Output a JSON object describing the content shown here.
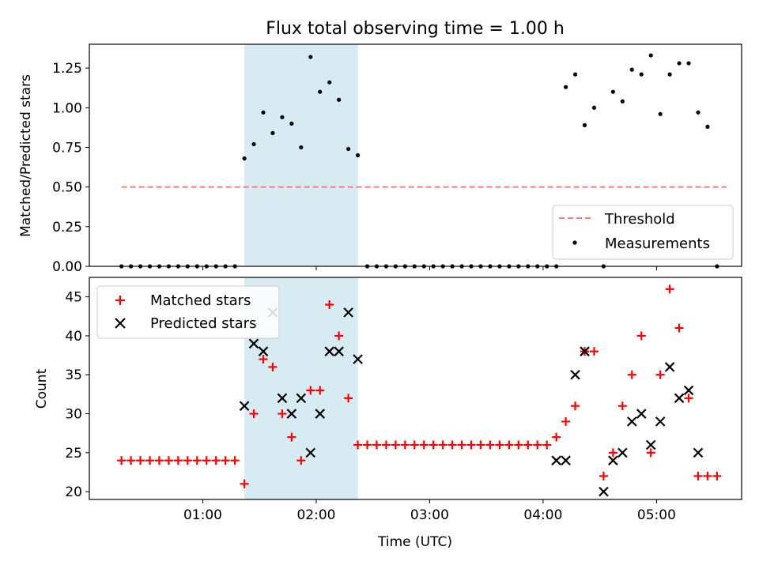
{
  "chart_data": [
    {
      "type": "scatter",
      "title": "Flux total observing time = 1.00 h",
      "ylabel": "Matched/Predicted stars",
      "xlabel": "",
      "ylim": [
        0,
        1.4
      ],
      "ytick_labels": [
        "0.00",
        "0.25",
        "0.50",
        "0.75",
        "1.00",
        "1.25"
      ],
      "yticks": [
        0,
        0.25,
        0.5,
        0.75,
        1.0,
        1.25
      ],
      "threshold": {
        "name": "Threshold",
        "value": 0.5,
        "x_start": "00:17",
        "x_end": "05:37",
        "color": "#ff7b7b"
      },
      "shaded_region": {
        "x_start": "01:22",
        "x_end": "02:22",
        "color": "#add8e6"
      },
      "legend": {
        "placement": "lower right",
        "entries": [
          "Threshold",
          "Measurements"
        ]
      },
      "series": [
        {
          "name": "Measurements",
          "color": "#000000",
          "x": [
            "00:17",
            "00:22",
            "00:27",
            "00:32",
            "00:37",
            "00:42",
            "00:47",
            "00:52",
            "00:57",
            "01:02",
            "01:07",
            "01:12",
            "01:17",
            "01:22",
            "01:27",
            "01:32",
            "01:37",
            "01:42",
            "01:47",
            "01:52",
            "01:57",
            "02:02",
            "02:07",
            "02:12",
            "02:17",
            "02:22",
            "02:27",
            "02:32",
            "02:37",
            "02:42",
            "02:47",
            "02:52",
            "02:57",
            "03:02",
            "03:07",
            "03:12",
            "03:17",
            "03:22",
            "03:27",
            "03:32",
            "03:37",
            "03:42",
            "03:47",
            "03:52",
            "03:57",
            "04:02",
            "04:07",
            "04:12",
            "04:17",
            "04:22",
            "04:27",
            "04:32",
            "04:37",
            "04:42",
            "04:47",
            "04:52",
            "04:57",
            "05:02",
            "05:07",
            "05:12",
            "05:17",
            "05:22",
            "05:27",
            "05:32"
          ],
          "y": [
            0,
            0,
            0,
            0,
            0,
            0,
            0,
            0,
            0,
            0,
            0,
            0,
            0,
            0.68,
            0.77,
            0.97,
            0.84,
            0.94,
            0.9,
            0.75,
            1.32,
            1.1,
            1.16,
            1.05,
            0.74,
            0.7,
            0,
            0,
            0,
            0,
            0,
            0,
            0,
            0,
            0,
            0,
            0,
            0,
            0,
            0,
            0,
            0,
            0,
            0,
            0,
            0,
            0,
            1.13,
            1.21,
            0.89,
            1.0,
            0,
            1.1,
            1.04,
            1.24,
            1.21,
            1.33,
            0.96,
            1.21,
            1.28,
            1.28,
            0.97,
            0.88,
            0
          ]
        }
      ]
    },
    {
      "type": "scatter",
      "title": "",
      "xlabel": "Time (UTC)",
      "ylabel": "Count",
      "ylim": [
        19,
        47.5
      ],
      "yticks": [
        20,
        25,
        30,
        35,
        40,
        45
      ],
      "ytick_labels": [
        "20",
        "25",
        "30",
        "35",
        "40",
        "45"
      ],
      "xticks": [
        "01:00",
        "02:00",
        "03:00",
        "04:00",
        "05:00"
      ],
      "xtick_labels": [
        "01:00",
        "02:00",
        "03:00",
        "04:00",
        "05:00"
      ],
      "xlim": [
        "00:00",
        "05:45"
      ],
      "shaded_region": {
        "x_start": "01:22",
        "x_end": "02:22",
        "color": "#add8e6"
      },
      "legend": {
        "placement": "upper left",
        "entries": [
          "Matched stars",
          "Predicted stars"
        ]
      },
      "series": [
        {
          "name": "Matched stars",
          "marker": "+",
          "color": "#ff0000",
          "points": [
            [
              "00:17",
              24
            ],
            [
              "00:22",
              24
            ],
            [
              "00:27",
              24
            ],
            [
              "00:32",
              24
            ],
            [
              "00:37",
              24
            ],
            [
              "00:42",
              24
            ],
            [
              "00:47",
              24
            ],
            [
              "00:52",
              24
            ],
            [
              "00:57",
              24
            ],
            [
              "01:02",
              24
            ],
            [
              "01:07",
              24
            ],
            [
              "01:12",
              24
            ],
            [
              "01:17",
              24
            ],
            [
              "01:22",
              21
            ],
            [
              "01:27",
              30
            ],
            [
              "01:32",
              37
            ],
            [
              "01:37",
              36
            ],
            [
              "01:42",
              30
            ],
            [
              "01:47",
              27
            ],
            [
              "01:52",
              24
            ],
            [
              "01:57",
              33
            ],
            [
              "02:02",
              33
            ],
            [
              "02:07",
              44
            ],
            [
              "02:12",
              40
            ],
            [
              "02:17",
              32
            ],
            [
              "02:22",
              26
            ],
            [
              "02:27",
              26
            ],
            [
              "02:32",
              26
            ],
            [
              "02:37",
              26
            ],
            [
              "02:42",
              26
            ],
            [
              "02:47",
              26
            ],
            [
              "02:52",
              26
            ],
            [
              "02:57",
              26
            ],
            [
              "03:02",
              26
            ],
            [
              "03:07",
              26
            ],
            [
              "03:12",
              26
            ],
            [
              "03:17",
              26
            ],
            [
              "03:22",
              26
            ],
            [
              "03:27",
              26
            ],
            [
              "03:32",
              26
            ],
            [
              "03:37",
              26
            ],
            [
              "03:42",
              26
            ],
            [
              "03:47",
              26
            ],
            [
              "03:52",
              26
            ],
            [
              "03:57",
              26
            ],
            [
              "04:02",
              26
            ],
            [
              "04:07",
              27
            ],
            [
              "04:12",
              29
            ],
            [
              "04:17",
              31
            ],
            [
              "04:22",
              38
            ],
            [
              "04:27",
              38
            ],
            [
              "04:32",
              22
            ],
            [
              "04:37",
              25
            ],
            [
              "04:42",
              31
            ],
            [
              "04:47",
              35
            ],
            [
              "04:52",
              40
            ],
            [
              "04:57",
              25
            ],
            [
              "05:02",
              35
            ],
            [
              "05:07",
              46
            ],
            [
              "05:12",
              41
            ],
            [
              "05:17",
              32
            ],
            [
              "05:22",
              22
            ],
            [
              "05:27",
              22
            ],
            [
              "05:32",
              22
            ]
          ]
        },
        {
          "name": "Predicted stars",
          "marker": "x",
          "color": "#000000",
          "points": [
            [
              "01:22",
              31
            ],
            [
              "01:27",
              39
            ],
            [
              "01:32",
              38
            ],
            [
              "01:37",
              43
            ],
            [
              "01:42",
              32
            ],
            [
              "01:47",
              30
            ],
            [
              "01:52",
              32
            ],
            [
              "01:57",
              25
            ],
            [
              "02:02",
              30
            ],
            [
              "02:07",
              38
            ],
            [
              "02:12",
              38
            ],
            [
              "02:17",
              43
            ],
            [
              "02:22",
              37
            ],
            [
              "04:07",
              24
            ],
            [
              "04:12",
              24
            ],
            [
              "04:17",
              35
            ],
            [
              "04:22",
              38
            ],
            [
              "04:32",
              20
            ],
            [
              "04:37",
              24
            ],
            [
              "04:42",
              25
            ],
            [
              "04:47",
              29
            ],
            [
              "04:52",
              30
            ],
            [
              "04:57",
              26
            ],
            [
              "05:02",
              29
            ],
            [
              "05:07",
              36
            ],
            [
              "05:12",
              32
            ],
            [
              "05:17",
              33
            ],
            [
              "05:22",
              25
            ]
          ]
        }
      ]
    }
  ]
}
